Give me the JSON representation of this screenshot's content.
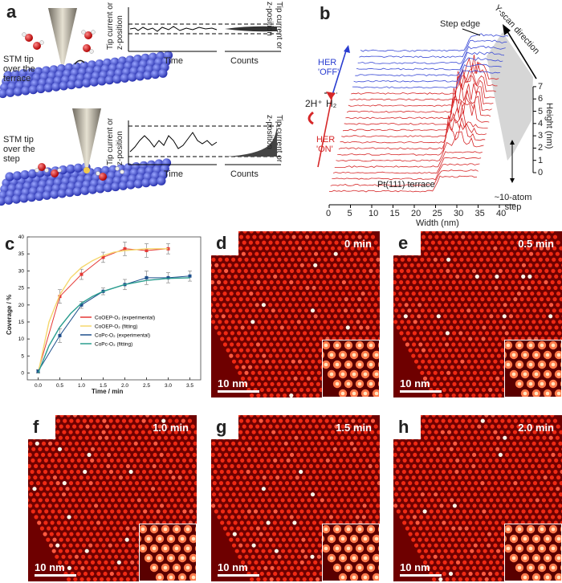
{
  "panels": {
    "a": {
      "label": "a",
      "top_text": "STM tip over the terrace",
      "bottom_text": "STM tip over the step",
      "y_axis": "Tip current or z-position",
      "right_axis": "Tip current or z-position",
      "x_time": "Time",
      "x_counts": "Counts"
    },
    "b": {
      "label": "b",
      "step_edge": "Step edge",
      "scan_dir": "Y-scan direction",
      "her_off": "HER 'OFF'",
      "her_on": "HER 'ON'",
      "reaction_left": "2H⁺",
      "reaction_right": "H₂",
      "terrace": "Pt(111) terrace",
      "step_note": "~10-atom step",
      "xlabel": "Width (nm)",
      "ylabel": "Height (nm)",
      "xticks": [
        "0",
        "5",
        "10",
        "15",
        "20",
        "25",
        "30",
        "35",
        "40"
      ],
      "yticks": [
        "0",
        "1",
        "2",
        "3",
        "4",
        "5",
        "6",
        "7"
      ]
    },
    "c": {
      "label": "c"
    },
    "d": {
      "label": "d",
      "time": "0 min",
      "scale": "10 nm"
    },
    "e": {
      "label": "e",
      "time": "0.5 min",
      "scale": "10 nm"
    },
    "f": {
      "label": "f",
      "time": "1.0 min",
      "scale": "10 nm"
    },
    "g": {
      "label": "g",
      "time": "1.5 min",
      "scale": "10 nm"
    },
    "h": {
      "label": "h",
      "time": "2.0 min",
      "scale": "10 nm"
    }
  },
  "chart_data": {
    "type": "line",
    "xlabel": "Time / min",
    "ylabel": "Coverage / %",
    "xlim": [
      -0.25,
      3.75
    ],
    "ylim": [
      -2,
      40
    ],
    "xticks": [
      0.0,
      0.5,
      1.0,
      1.5,
      2.0,
      2.5,
      3.0,
      3.5
    ],
    "yticks": [
      0,
      5,
      10,
      15,
      20,
      25,
      30,
      35,
      40
    ],
    "legend_position": "center-right",
    "series": [
      {
        "name": "CoOEP-O₂ (experimental)",
        "color": "#e53935",
        "kind": "points",
        "x": [
          0,
          0.5,
          1.0,
          1.5,
          2.0,
          2.5,
          3.0
        ],
        "y": [
          0.5,
          22.5,
          29,
          34,
          36.5,
          36,
          36.5
        ],
        "err": [
          0.5,
          2,
          1.5,
          1.5,
          2,
          2,
          1.5
        ]
      },
      {
        "name": "CoOEP-O₂ (fitting)",
        "color": "#f5d76e",
        "kind": "curve",
        "x": [
          0,
          0.25,
          0.5,
          0.75,
          1.0,
          1.25,
          1.5,
          1.75,
          2.0,
          2.5,
          3.0
        ],
        "y": [
          0,
          15,
          23,
          28,
          31,
          33,
          34.5,
          35.5,
          36,
          36.5,
          36.5
        ]
      },
      {
        "name": "CoPc-O₂ (experimental)",
        "color": "#1e4f8c",
        "kind": "points",
        "x": [
          0,
          0.5,
          1.0,
          1.5,
          2.0,
          2.5,
          3.0,
          3.5
        ],
        "y": [
          0.5,
          11,
          20,
          24,
          26,
          28,
          28,
          28.5
        ],
        "err": [
          0.5,
          2,
          1,
          1,
          1.5,
          2,
          1.5,
          1.5
        ]
      },
      {
        "name": "CoPc-O₂ (fitting)",
        "color": "#2a9d8f",
        "kind": "curve",
        "x": [
          0,
          0.25,
          0.5,
          0.75,
          1.0,
          1.25,
          1.5,
          1.75,
          2.0,
          2.5,
          3.0,
          3.5
        ],
        "y": [
          0,
          8,
          13.5,
          17.5,
          20.5,
          22.5,
          24,
          25,
          26,
          27.2,
          27.8,
          28
        ]
      }
    ]
  }
}
